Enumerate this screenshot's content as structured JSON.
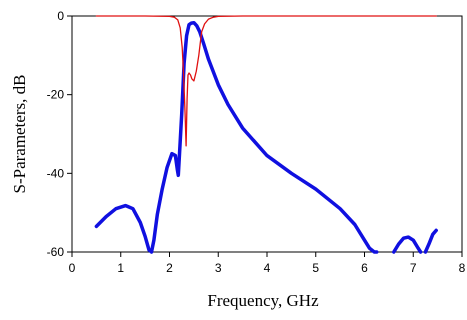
{
  "chart_data": {
    "type": "line",
    "title": "",
    "xlabel": "Frequency, GHz",
    "ylabel": "S-Parameters, dB",
    "xlim": [
      0,
      8
    ],
    "ylim": [
      -60,
      0
    ],
    "x_ticks": [
      0,
      1,
      2,
      3,
      4,
      5,
      6,
      7,
      8
    ],
    "y_ticks": [
      0,
      -20,
      -40,
      -60
    ],
    "x_tick_labels": [
      "0",
      "1",
      "2",
      "3",
      "4",
      "5",
      "6",
      "7",
      "8"
    ],
    "y_tick_labels": [
      "0",
      "-20",
      "-40",
      "-60"
    ],
    "grid": false,
    "legend": "none",
    "series": [
      {
        "color": "#1010e0",
        "x": [
          0.5,
          0.7,
          0.9,
          1.1,
          1.25,
          1.4,
          1.5,
          1.58,
          1.63,
          1.68,
          1.75,
          1.85,
          1.95,
          2.05,
          2.12,
          2.16,
          2.18,
          2.2,
          2.25,
          2.3,
          2.35,
          2.4,
          2.45,
          2.5,
          2.56,
          2.62,
          2.7,
          2.8,
          3.0,
          3.2,
          3.5,
          4.0,
          4.5,
          5.0,
          5.5,
          5.8,
          6.0,
          6.1,
          6.2,
          6.25
        ],
        "y": [
          -53.5,
          -51,
          -49,
          -48.2,
          -49,
          -52.5,
          -56,
          -59.5,
          -60,
          -57,
          -50.5,
          -44,
          -38.5,
          -35,
          -35.5,
          -39,
          -40.5,
          -36,
          -25,
          -12,
          -5,
          -2.2,
          -1.8,
          -1.7,
          -2.5,
          -4,
          -7,
          -11,
          -17.5,
          -22.5,
          -28.5,
          -35.5,
          -40,
          -44,
          -49,
          -53,
          -57,
          -59,
          -60.5,
          -61
        ]
      },
      {
        "color": "#1010e0",
        "x": [
          6.6,
          6.7,
          6.8,
          6.9,
          7.0,
          7.1,
          7.15
        ],
        "y": [
          -60,
          -58,
          -56.5,
          -56.2,
          -57,
          -59,
          -60
        ]
      },
      {
        "color": "#1010e0",
        "x": [
          7.25,
          7.32,
          7.4,
          7.47
        ],
        "y": [
          -60,
          -58,
          -55.5,
          -54.5
        ]
      },
      {
        "color": "#e01010",
        "x": [
          0.5,
          1.5,
          2.0,
          2.1,
          2.17,
          2.22,
          2.26,
          2.29,
          2.32,
          2.34,
          2.36,
          2.38,
          2.4,
          2.43,
          2.46,
          2.5,
          2.55,
          2.6,
          2.63,
          2.66,
          2.72,
          2.8,
          2.9,
          3.0,
          3.5,
          4.5,
          5.5,
          6.5,
          7.0,
          7.47
        ],
        "y": [
          0,
          0,
          -0.1,
          -0.3,
          -1,
          -3,
          -8,
          -15,
          -25,
          -33,
          -21,
          -15,
          -14.5,
          -15,
          -16,
          -16.5,
          -14,
          -10,
          -7,
          -4,
          -2,
          -0.8,
          -0.3,
          -0.1,
          0,
          0,
          0,
          0,
          0,
          0
        ]
      }
    ]
  }
}
